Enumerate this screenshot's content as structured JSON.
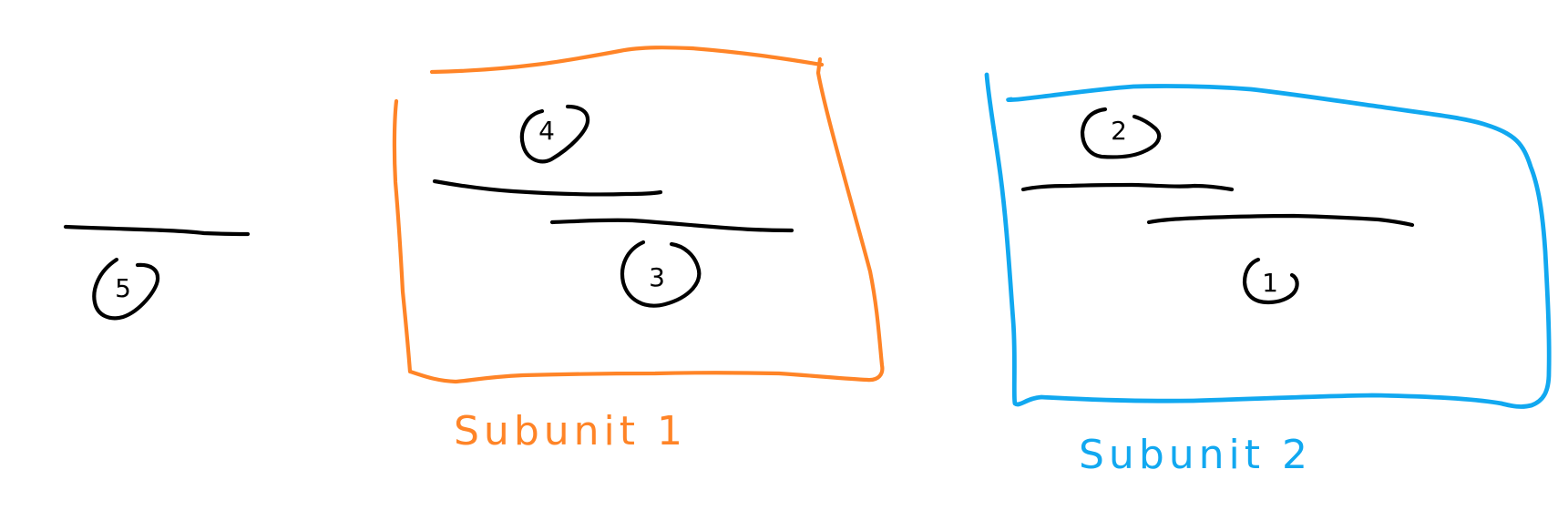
{
  "colors": {
    "ink": "#000000",
    "subunit_1": "#FF8427",
    "subunit_2": "#11A8F0",
    "background": "#FFFFFF"
  },
  "left_group": {
    "number": "5"
  },
  "subunit_1": {
    "label": "Subunit 1",
    "upper_number": "4",
    "lower_number": "3"
  },
  "subunit_2": {
    "label": "Subunit 2",
    "upper_number": "2",
    "lower_number": "1"
  }
}
